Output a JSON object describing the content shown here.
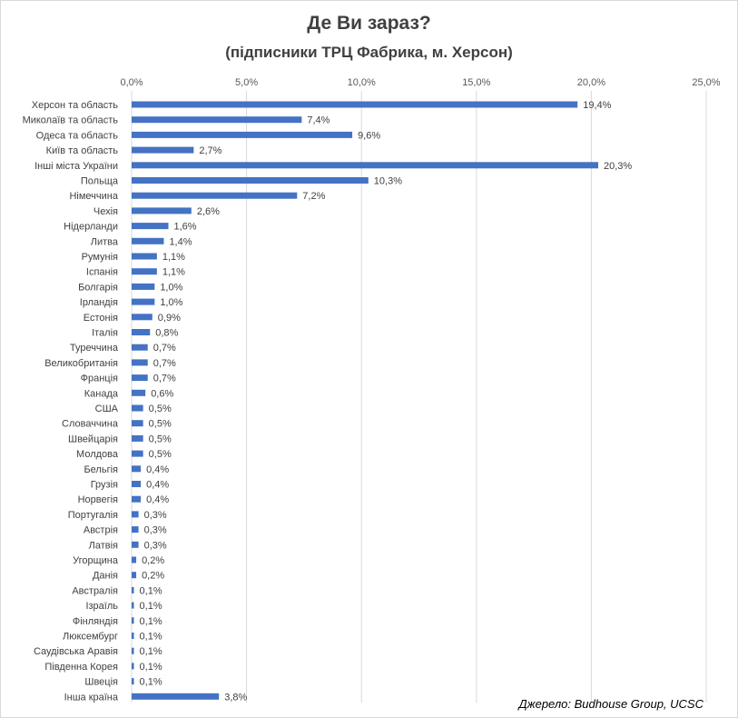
{
  "title": "Де Ви зараз?",
  "subtitle": "(підписники ТРЦ Фабрика, м. Херсон)",
  "source": "Джерело: Budhouse Group, UCSC",
  "colors": {
    "bar": "#4472c4",
    "grid": "#d9d9d9"
  },
  "chart_data": {
    "type": "bar",
    "orientation": "horizontal",
    "axis_position": "top",
    "grid": true,
    "xlim": [
      0,
      25
    ],
    "ticks": [
      {
        "value": 0,
        "label": "0,0%"
      },
      {
        "value": 5,
        "label": "5,0%"
      },
      {
        "value": 10,
        "label": "10,0%"
      },
      {
        "value": 15,
        "label": "15,0%"
      },
      {
        "value": 20,
        "label": "20,0%"
      },
      {
        "value": 25,
        "label": "25,0%"
      }
    ],
    "categories": [
      "Херсон та область",
      "Миколаїв та  область",
      "Одеса та область",
      "Київ та область",
      "Інші міста України",
      "Польща",
      "Німеччина",
      "Чехія",
      "Нідерланди",
      "Литва",
      "Румунія",
      "Іспанія",
      "Болгарія",
      "Ірландія",
      "Естонія",
      "Італія",
      "Туреччина",
      "Великобританія",
      "Франція",
      "Канада",
      "США",
      "Словаччина",
      "Швейцарія",
      "Молдова",
      "Бельгія",
      "Грузія",
      "Норвегія",
      "Португалія",
      "Австрія",
      "Латвія",
      "Угорщина",
      "Данія",
      "Австралія",
      "Ізраїль",
      "Фінляндія",
      "Люксембург",
      "Саудівська Аравія",
      "Південна Корея",
      "Швеція",
      "Інша країна"
    ],
    "values": [
      19.4,
      7.4,
      9.6,
      2.7,
      20.3,
      10.3,
      7.2,
      2.6,
      1.6,
      1.4,
      1.1,
      1.1,
      1.0,
      1.0,
      0.9,
      0.8,
      0.7,
      0.7,
      0.7,
      0.6,
      0.5,
      0.5,
      0.5,
      0.5,
      0.4,
      0.4,
      0.4,
      0.3,
      0.3,
      0.3,
      0.2,
      0.2,
      0.1,
      0.1,
      0.1,
      0.1,
      0.1,
      0.1,
      0.1,
      3.8
    ],
    "labels": [
      "19,4%",
      "7,4%",
      "9,6%",
      "2,7%",
      "20,3%",
      "10,3%",
      "7,2%",
      "2,6%",
      "1,6%",
      "1,4%",
      "1,1%",
      "1,1%",
      "1,0%",
      "1,0%",
      "0,9%",
      "0,8%",
      "0,7%",
      "0,7%",
      "0,7%",
      "0,6%",
      "0,5%",
      "0,5%",
      "0,5%",
      "0,5%",
      "0,4%",
      "0,4%",
      "0,4%",
      "0,3%",
      "0,3%",
      "0,3%",
      "0,2%",
      "0,2%",
      "0,1%",
      "0,1%",
      "0,1%",
      "0,1%",
      "0,1%",
      "0,1%",
      "0,1%",
      "3,8%"
    ]
  }
}
